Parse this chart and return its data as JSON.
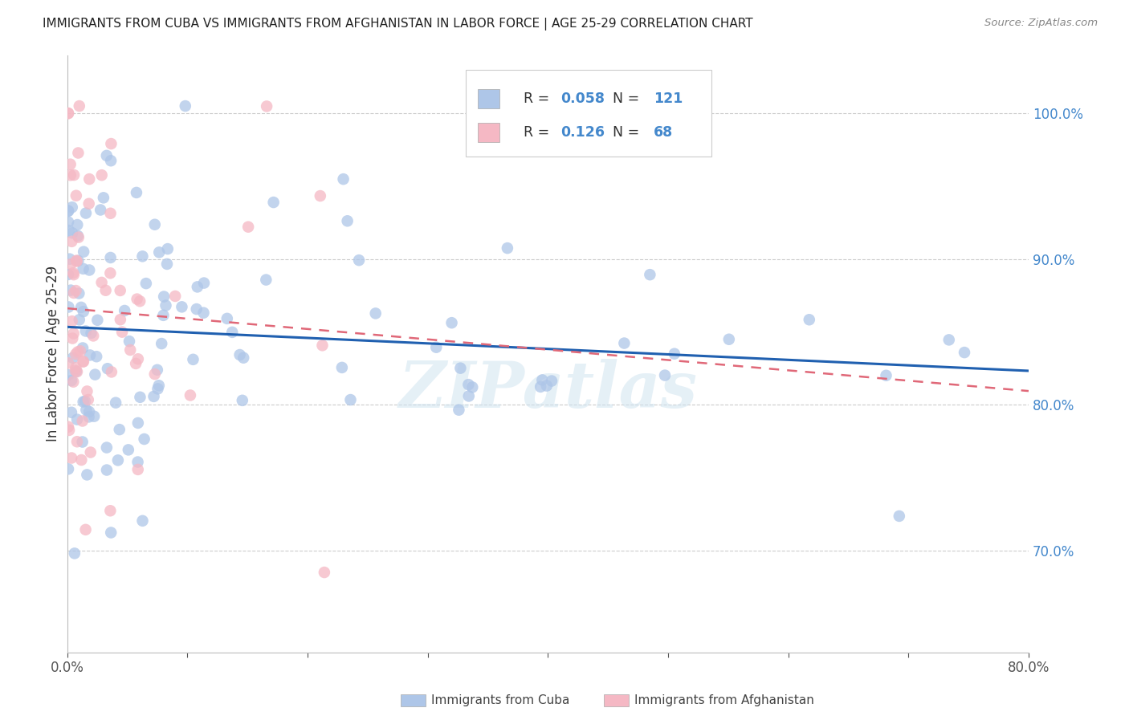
{
  "title": "IMMIGRANTS FROM CUBA VS IMMIGRANTS FROM AFGHANISTAN IN LABOR FORCE | AGE 25-29 CORRELATION CHART",
  "source": "Source: ZipAtlas.com",
  "ylabel_left": "In Labor Force | Age 25-29",
  "r_cuba": 0.058,
  "n_cuba": 121,
  "r_afghanistan": 0.126,
  "n_afghanistan": 68,
  "color_cuba": "#aec6e8",
  "color_afghanistan": "#f5b8c4",
  "trendline_cuba_color": "#2060b0",
  "trendline_afghanistan_color": "#e06878",
  "right_axis_color": "#4488cc",
  "legend_text_color": "#4488cc",
  "watermark": "ZIPatlas",
  "xlim": [
    0.0,
    0.8
  ],
  "ylim": [
    0.63,
    1.04
  ],
  "yticks_right": [
    0.7,
    0.8,
    0.9,
    1.0
  ],
  "seed_cuba": 12,
  "seed_afg": 7
}
